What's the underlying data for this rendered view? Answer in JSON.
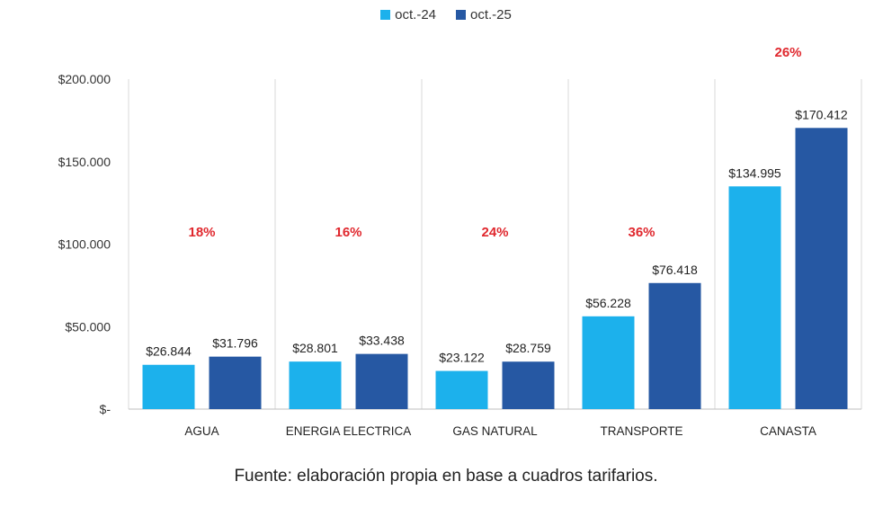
{
  "chart_data": {
    "type": "bar",
    "categories": [
      "AGUA",
      "ENERGIA ELECTRICA",
      "GAS NATURAL",
      "TRANSPORTE",
      "CANASTA"
    ],
    "series": [
      {
        "name": "oct.-24",
        "color": "#1CB1EC",
        "values": [
          26844,
          28801,
          23122,
          56228,
          134995
        ],
        "labels": [
          "$26.844",
          "$28.801",
          "$23.122",
          "$56.228",
          "$134.995"
        ]
      },
      {
        "name": "oct.-25",
        "color": "#2658A3",
        "values": [
          31796,
          33438,
          28759,
          76418,
          170412
        ],
        "labels": [
          "$31.796",
          "$33.438",
          "$28.759",
          "$76.418",
          "$170.412"
        ]
      }
    ],
    "annotations": [
      "18%",
      "16%",
      "24%",
      "36%",
      "26%"
    ],
    "annotation_color": "#E0282E",
    "ylim": [
      0,
      200000
    ],
    "yticks": [
      0,
      50000,
      100000,
      150000,
      200000
    ],
    "ytick_labels": [
      "$-",
      "$50.000",
      "$100.000",
      "$150.000",
      "$200.000"
    ],
    "legend_position": "top-center",
    "title": "",
    "xlabel": "",
    "ylabel": ""
  },
  "source_note": "Fuente: elaboración propia en base a cuadros tarifarios."
}
